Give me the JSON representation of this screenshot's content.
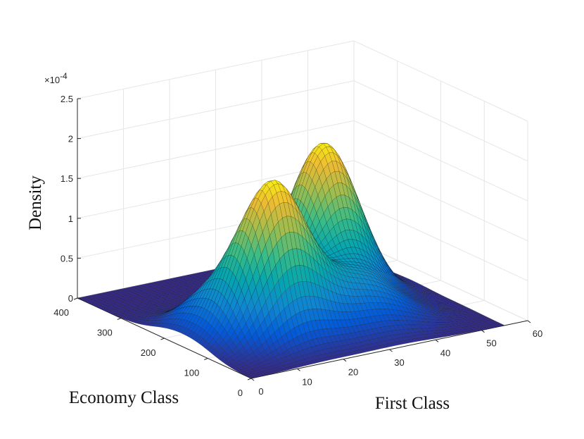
{
  "chart_data": {
    "type": "surface",
    "xlabel": "First Class",
    "ylabel": "Economy Class",
    "zlabel": "Density",
    "z_exponent_base": "×10",
    "z_exponent_power": "-4",
    "xlim": [
      0,
      60
    ],
    "ylim": [
      0,
      400
    ],
    "zlim": [
      0,
      2.5
    ],
    "x_ticks": [
      "0",
      "10",
      "20",
      "30",
      "40",
      "50",
      "60"
    ],
    "y_ticks": [
      "0",
      "100",
      "200",
      "300",
      "400"
    ],
    "z_ticks": [
      "0",
      "0.5",
      "1",
      "1.5",
      "2",
      "2.5"
    ],
    "grid": true,
    "colormap": "parula",
    "surface_domain": {
      "x": [
        0,
        55
      ],
      "y": [
        0,
        400
      ]
    },
    "grid_resolution": 60,
    "peaks": [
      {
        "x": 16,
        "y": 120,
        "height": 1.88,
        "sigma_x": 6.5,
        "sigma_y": 40
      },
      {
        "x": 36,
        "y": 215,
        "height": 1.97,
        "sigma_x": 6.5,
        "sigma_y": 48
      },
      {
        "x": 32,
        "y": 95,
        "height": 0.55,
        "sigma_x": 8.0,
        "sigma_y": 40
      },
      {
        "x": 8,
        "y": 185,
        "height": 0.45,
        "sigma_x": 5.0,
        "sigma_y": 45
      }
    ]
  }
}
